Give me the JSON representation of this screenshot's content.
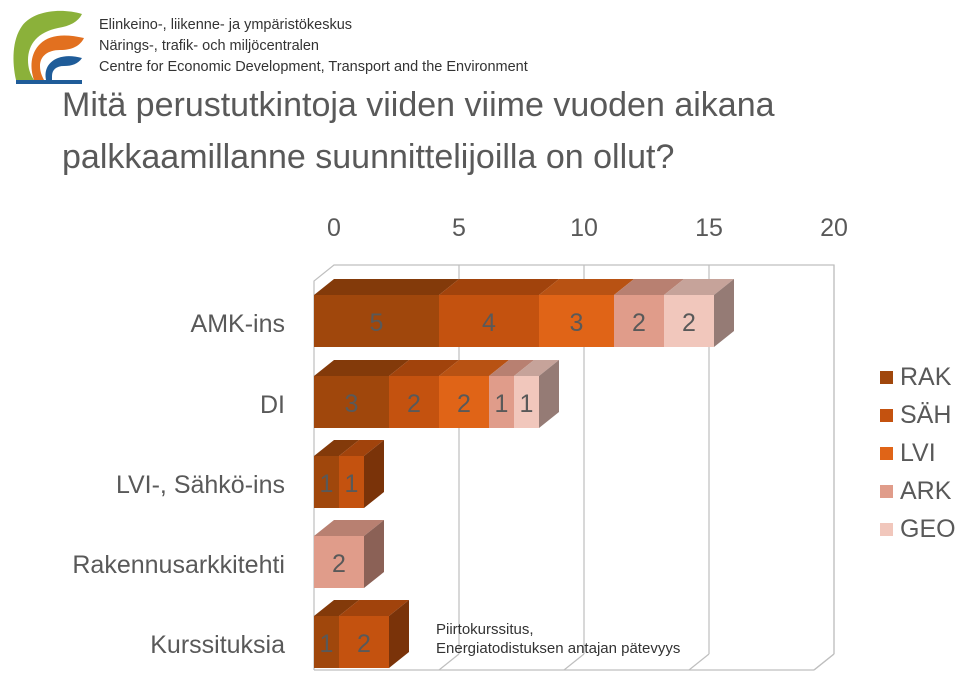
{
  "header": {
    "org_lines": [
      "Elinkeino-, liikenne- ja ympäristökeskus",
      "Närings-, trafik- och miljöcentralen",
      "Centre for Economic Development, Transport and the Environment"
    ],
    "title_lines": [
      "Mitä perustutkintoja viiden viime vuoden aikana",
      "palkkaamillanne suunnittelijoilla on ollut?"
    ]
  },
  "chart_data": {
    "type": "bar",
    "orientation": "horizontal",
    "stacked": true,
    "style": "3d",
    "categories": [
      "AMK-ins",
      "DI",
      "LVI-, Sähkö-ins",
      "Rakennusarkkitehti",
      "Kurssituksia"
    ],
    "xlim": [
      0,
      20
    ],
    "xticks": [
      "0",
      "5",
      "10",
      "15",
      "20"
    ],
    "grid": true,
    "legend_position": "right",
    "colors": [
      "#A0470C",
      "#C4520F",
      "#E06417",
      "#E09C8A",
      "#F1C7BC"
    ],
    "series": [
      {
        "name": "RAK",
        "values": [
          5,
          3,
          1,
          0,
          1
        ]
      },
      {
        "name": "SÄH",
        "values": [
          4,
          2,
          1,
          0,
          2
        ]
      },
      {
        "name": "LVI",
        "values": [
          3,
          2,
          0,
          0,
          0
        ]
      },
      {
        "name": "ARK",
        "values": [
          2,
          1,
          0,
          2,
          0
        ]
      },
      {
        "name": "GEO",
        "values": [
          2,
          1,
          0,
          0,
          0
        ]
      }
    ],
    "annotation_lines": [
      "Piirtokurssitus,",
      "Energiatodistuksen antajan pätevyys"
    ]
  }
}
